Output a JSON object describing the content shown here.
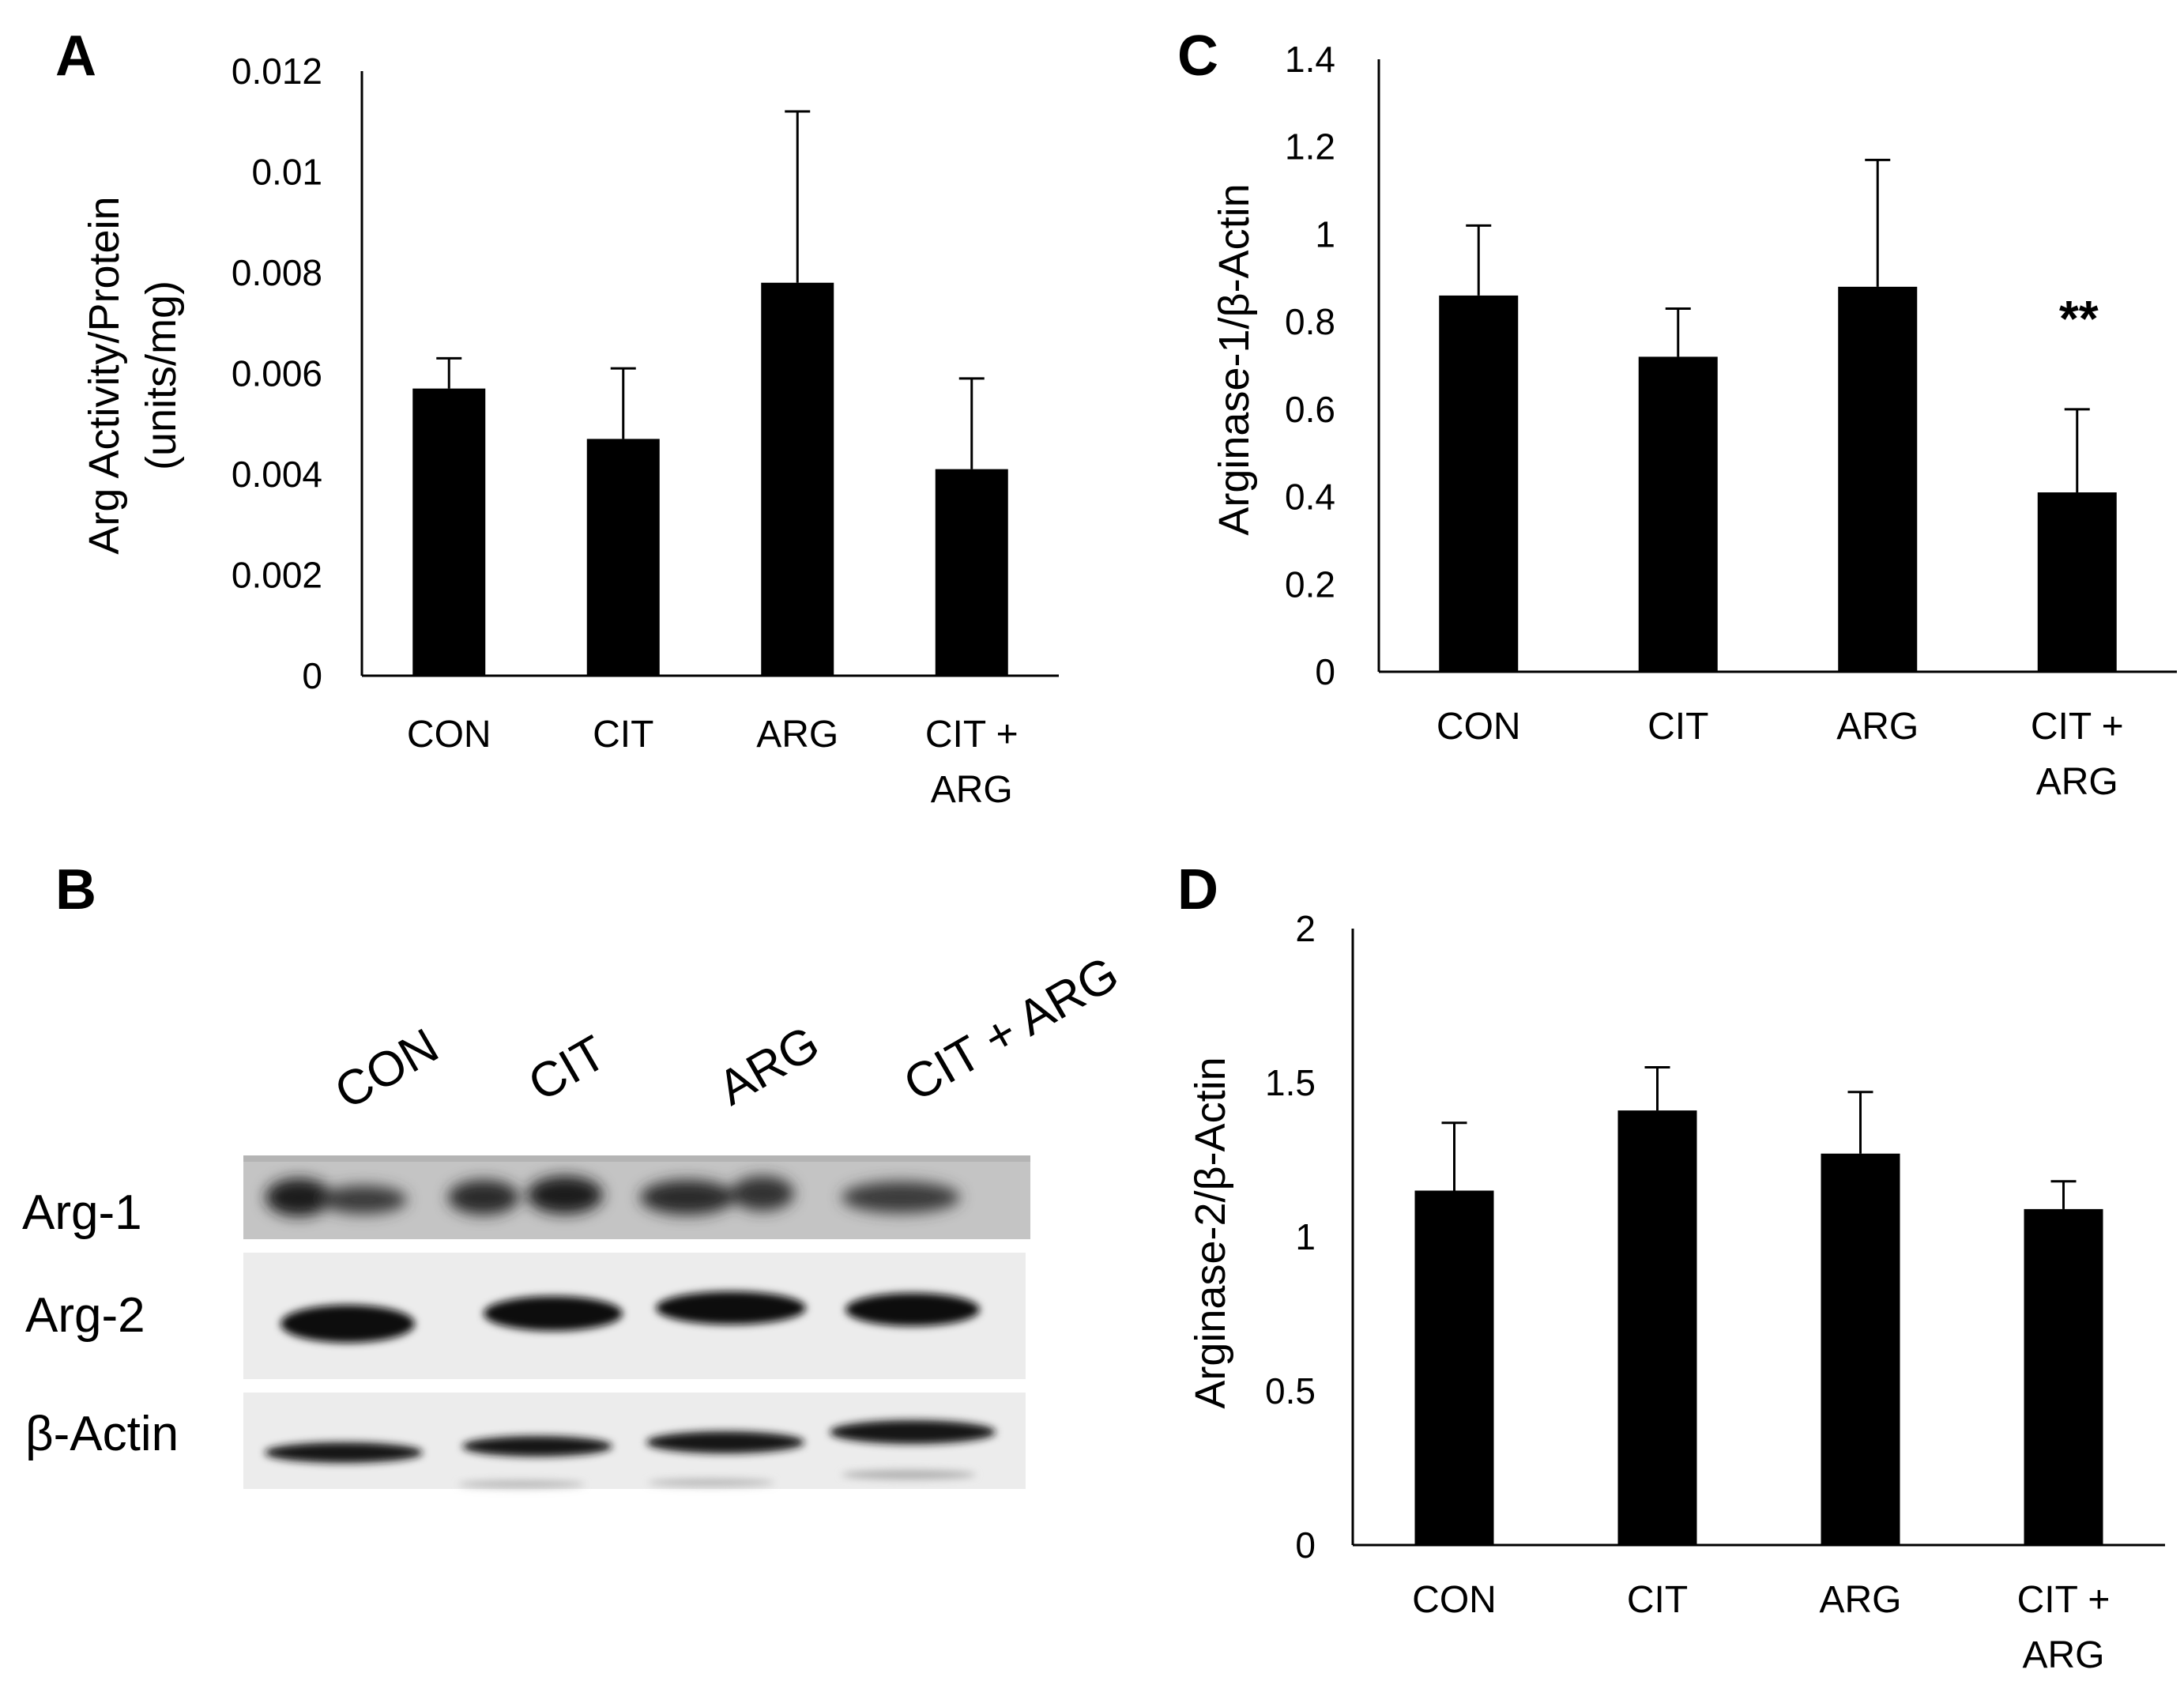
{
  "panels": {
    "A": "A",
    "B": "B",
    "C": "C",
    "D": "D"
  },
  "colors": {
    "bar": "#000000",
    "axis": "#000000"
  },
  "chart_data": [
    {
      "panel": "A",
      "type": "bar",
      "categories": [
        "CON",
        "CIT",
        "ARG",
        "CIT + ARG"
      ],
      "values": [
        0.0057,
        0.0047,
        0.0078,
        0.0041
      ],
      "errors": [
        0.0006,
        0.0014,
        0.0034,
        0.0018
      ],
      "ylabel_lines": [
        "Arg Activity/Protein",
        "(units/mg)"
      ],
      "ylim": [
        0,
        0.012
      ],
      "yticks": [
        "0",
        "0.002",
        "0.004",
        "0.006",
        "0.008",
        "0.01",
        "0.012"
      ],
      "annotations": []
    },
    {
      "panel": "C",
      "type": "bar",
      "categories": [
        "CON",
        "CIT",
        "ARG",
        "CIT + ARG"
      ],
      "values": [
        0.86,
        0.72,
        0.88,
        0.41
      ],
      "errors": [
        0.16,
        0.11,
        0.29,
        0.19
      ],
      "ylabel_lines": [
        "Arginase-1/β-Actin"
      ],
      "ylim": [
        0,
        1.4
      ],
      "yticks": [
        "0",
        "0.2",
        "0.4",
        "0.6",
        "0.8",
        "1",
        "1.2",
        "1.4"
      ],
      "annotations": [
        {
          "category": "CIT + ARG",
          "text": "**"
        }
      ]
    },
    {
      "panel": "D",
      "type": "bar",
      "categories": [
        "CON",
        "CIT",
        "ARG",
        "CIT + ARG"
      ],
      "values": [
        1.15,
        1.41,
        1.27,
        1.09
      ],
      "errors": [
        0.22,
        0.14,
        0.2,
        0.09
      ],
      "ylabel_lines": [
        "Arginase-2/β-Actin"
      ],
      "ylim": [
        0,
        2
      ],
      "yticks": [
        "0",
        "0.5",
        "1",
        "1.5",
        "2"
      ],
      "annotations": []
    }
  ],
  "blot": {
    "lanes": [
      "CON",
      "CIT",
      "ARG",
      "CIT + ARG"
    ],
    "rows": [
      "Arg-1",
      "Arg-2",
      "β-Actin"
    ]
  }
}
